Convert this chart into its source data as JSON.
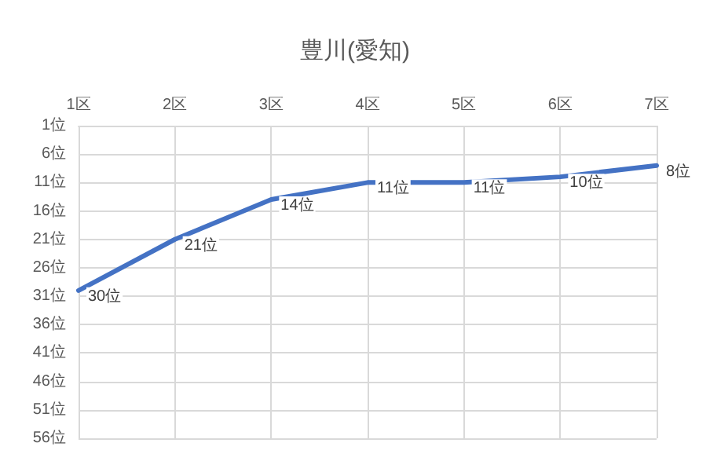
{
  "chart_data": {
    "type": "line",
    "title": "豊川(愛知)",
    "categories": [
      "1区",
      "2区",
      "3区",
      "4区",
      "5区",
      "6区",
      "7区"
    ],
    "series": [
      {
        "color": "#4472c4",
        "values": [
          30,
          21,
          14,
          11,
          11,
          10,
          8
        ],
        "value_labels": [
          "30位",
          "21位",
          "14位",
          "11位",
          "11位",
          "10位",
          "8位"
        ]
      }
    ],
    "ylim": [
      56,
      1
    ],
    "yticks": [
      {
        "value": 1,
        "label": "1位"
      },
      {
        "value": 6,
        "label": "6位"
      },
      {
        "value": 11,
        "label": "11位"
      },
      {
        "value": 16,
        "label": "16位"
      },
      {
        "value": 21,
        "label": "21位"
      },
      {
        "value": 26,
        "label": "26位"
      },
      {
        "value": 31,
        "label": "31位"
      },
      {
        "value": 36,
        "label": "36位"
      },
      {
        "value": 41,
        "label": "41位"
      },
      {
        "value": 46,
        "label": "46位"
      },
      {
        "value": 51,
        "label": "51位"
      },
      {
        "value": 56,
        "label": "56位"
      }
    ],
    "grid": true,
    "marker": "none",
    "line_style": "solid"
  }
}
